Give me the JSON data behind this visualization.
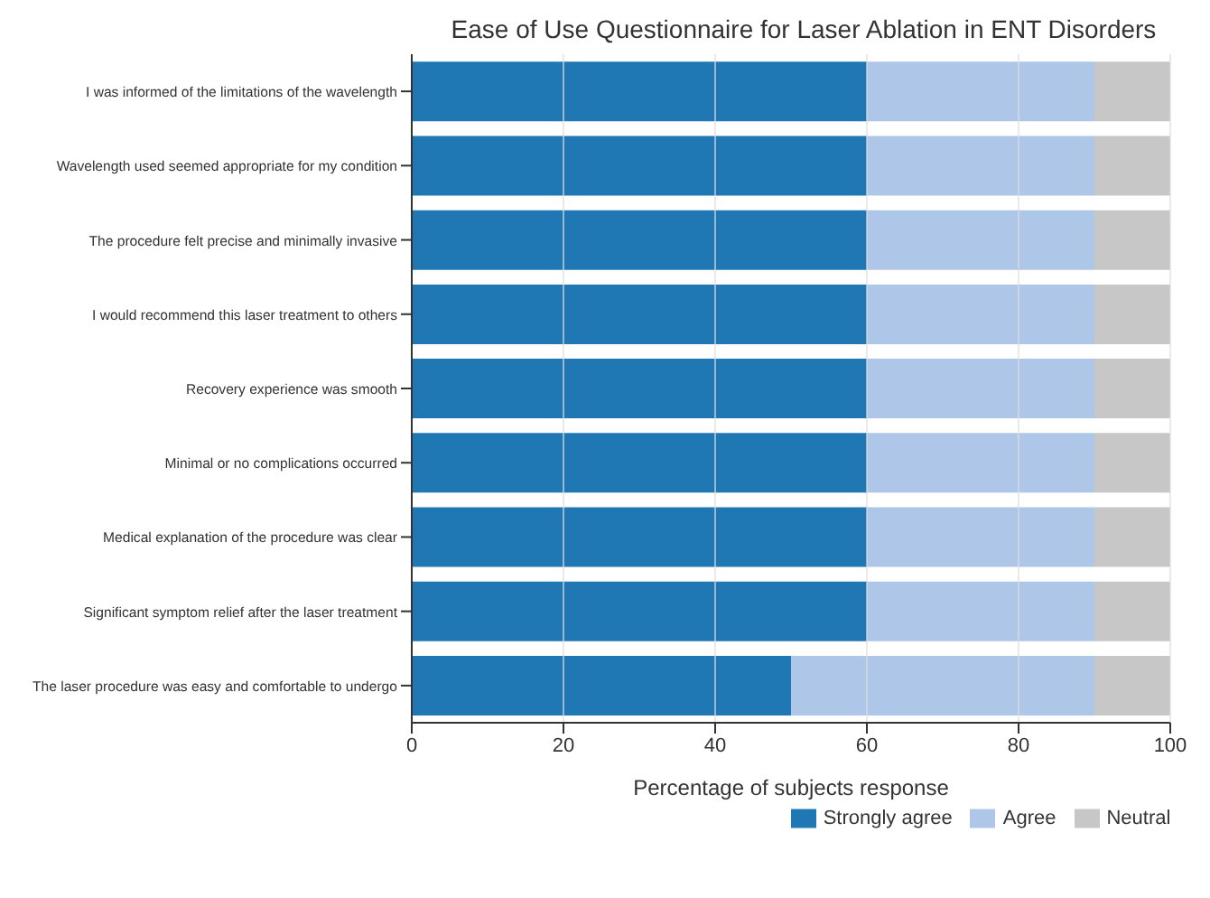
{
  "chart_data": {
    "type": "bar",
    "orientation": "horizontal",
    "stacked": true,
    "title": "Ease of Use Questionnaire for Laser Ablation in ENT Disorders",
    "xlabel": "Percentage of subjects response",
    "categories": [
      "I was informed of the limitations of the wavelength",
      "Wavelength used seemed appropriate for my condition",
      "The procedure felt precise and minimally invasive",
      "I would recommend this laser treatment to others",
      "Recovery experience was smooth",
      "Minimal or no complications occurred",
      "Medical explanation of the procedure was clear",
      "Significant symptom relief after the laser treatment",
      "The laser procedure was easy and comfortable to undergo"
    ],
    "series": [
      {
        "name": "Strongly agree",
        "color": "#1f77b4",
        "values": [
          60,
          60,
          60,
          60,
          60,
          60,
          60,
          60,
          50
        ]
      },
      {
        "name": "Agree",
        "color": "#aec7e8",
        "values": [
          30,
          30,
          30,
          30,
          30,
          30,
          30,
          30,
          40
        ]
      },
      {
        "name": "Neutral",
        "color": "#c7c7c7",
        "values": [
          10,
          10,
          10,
          10,
          10,
          10,
          10,
          10,
          10
        ]
      }
    ],
    "xlim": [
      0,
      100
    ],
    "xticks": [
      0,
      20,
      40,
      60,
      80,
      100
    ],
    "grid": "x",
    "legend": "bottom"
  }
}
